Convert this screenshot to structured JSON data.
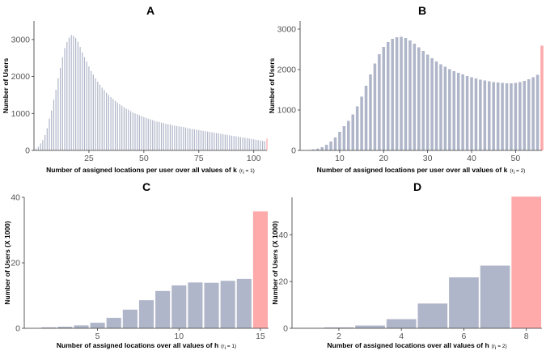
{
  "colors": {
    "bar": "#b0b6c9",
    "highlight": "#fea9aa"
  },
  "chart_data": [
    {
      "panel": "A",
      "type": "bar",
      "title": "A",
      "xlabel": "Number of assigned locations per user over all values of k",
      "xlabel_paren": "(r",
      "xlabel_sub": "i",
      "xlabel_tail": " = 1)",
      "ylabel": "Number of Users",
      "xlim": [
        0,
        106
      ],
      "ylim": [
        0,
        3500
      ],
      "xticks": [
        25,
        50,
        75,
        100
      ],
      "yticks": [
        0,
        1000,
        2000,
        3000
      ],
      "bar_width": 0.45,
      "highlight_x": 106,
      "x_start": 1,
      "values": [
        50,
        100,
        190,
        280,
        420,
        600,
        860,
        1080,
        1370,
        1640,
        1950,
        2230,
        2520,
        2770,
        2930,
        3050,
        3120,
        3100,
        3040,
        2940,
        2800,
        2650,
        2520,
        2400,
        2270,
        2150,
        2050,
        1950,
        1860,
        1780,
        1700,
        1630,
        1560,
        1500,
        1440,
        1390,
        1340,
        1290,
        1250,
        1210,
        1170,
        1130,
        1100,
        1060,
        1030,
        1000,
        980,
        950,
        930,
        900,
        880,
        860,
        840,
        820,
        800,
        780,
        770,
        750,
        740,
        720,
        710,
        700,
        680,
        670,
        660,
        650,
        640,
        630,
        620,
        600,
        590,
        580,
        570,
        560,
        550,
        540,
        530,
        520,
        510,
        500,
        490,
        480,
        470,
        460,
        450,
        440,
        430,
        420,
        410,
        400,
        390,
        380,
        370,
        360,
        350,
        340,
        330,
        320,
        310,
        300,
        290,
        280,
        270,
        260,
        250,
        320
      ]
    },
    {
      "panel": "B",
      "type": "bar",
      "title": "B",
      "xlabel": "Number of assigned locations per user over all values of k",
      "xlabel_paren": "(r",
      "xlabel_sub": "i",
      "xlabel_tail": " = 2)",
      "ylabel": "Number of Users",
      "xlim": [
        1,
        56
      ],
      "ylim": [
        0,
        3200
      ],
      "xticks": [
        10,
        20,
        30,
        40,
        50
      ],
      "yticks": [
        0,
        1000,
        2000,
        3000
      ],
      "bar_width": 0.65,
      "highlight_x": 56,
      "x_start": 1,
      "values": [
        3,
        5,
        10,
        25,
        45,
        80,
        140,
        220,
        320,
        460,
        600,
        730,
        890,
        1090,
        1330,
        1600,
        1880,
        2150,
        2380,
        2560,
        2680,
        2760,
        2800,
        2810,
        2780,
        2720,
        2640,
        2550,
        2460,
        2370,
        2280,
        2200,
        2130,
        2070,
        2010,
        1960,
        1920,
        1880,
        1840,
        1810,
        1780,
        1750,
        1730,
        1710,
        1690,
        1680,
        1670,
        1660,
        1660,
        1670,
        1690,
        1720,
        1760,
        1810,
        1870,
        2590
      ]
    },
    {
      "panel": "C",
      "type": "bar",
      "title": "C",
      "xlabel": "Number of assigned locations over all values of h",
      "xlabel_paren": "(r",
      "xlabel_sub": "i",
      "xlabel_tail": " = 1)",
      "ylabel": "Number of Users (X 1000)",
      "xlim": [
        0.5,
        15.5
      ],
      "ylim": [
        0,
        40
      ],
      "xticks": [
        5,
        10,
        15
      ],
      "yticks": [
        0,
        20,
        40
      ],
      "bar_width": 0.9,
      "highlight_x": 15,
      "x_start": 1,
      "values": [
        0.1,
        0.3,
        0.5,
        0.9,
        1.7,
        3.2,
        5.7,
        8.6,
        11.4,
        13.1,
        14.0,
        13.9,
        14.5,
        15.1,
        35.7
      ]
    },
    {
      "panel": "D",
      "type": "bar",
      "title": "D",
      "xlabel": "Number of assigned locations over all values of h",
      "xlabel_paren": "(r",
      "xlabel_sub": "i",
      "xlabel_tail": " = 2)",
      "ylabel": "Number of Users (X 1000)",
      "xlim": [
        0.5,
        8.5
      ],
      "ylim": [
        0,
        56
      ],
      "xticks": [
        2,
        4,
        6,
        8
      ],
      "yticks": [
        0,
        20,
        40
      ],
      "bar_width": 0.95,
      "highlight_x": 8,
      "x_start": 1,
      "values": [
        0.2,
        0.4,
        1.2,
        3.9,
        10.6,
        21.8,
        26.8,
        56.3
      ]
    }
  ]
}
